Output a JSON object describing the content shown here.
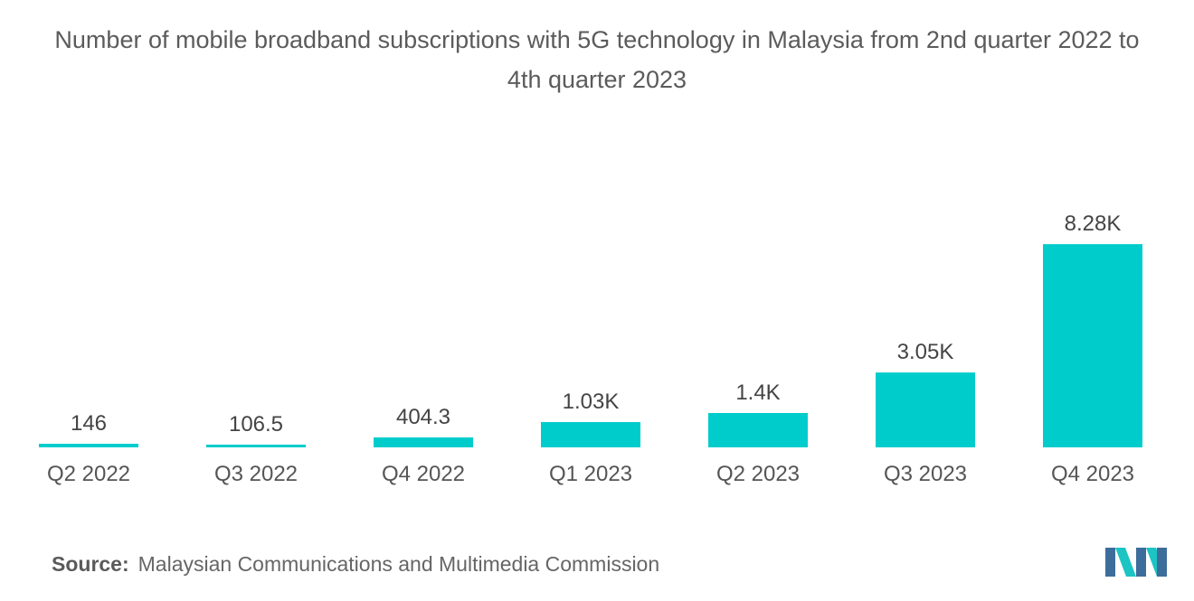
{
  "chart_data": {
    "type": "bar",
    "title": "Number of mobile broadband subscriptions with 5G technology in Malaysia from 2nd quarter 2022 to 4th quarter 2023",
    "categories": [
      "Q2 2022",
      "Q3 2022",
      "Q4 2022",
      "Q1 2023",
      "Q2 2023",
      "Q3 2023",
      "Q4 2023"
    ],
    "values": [
      146,
      106.5,
      404.3,
      1030,
      1400,
      3050,
      8280
    ],
    "data_labels": [
      "146",
      "106.5",
      "404.3",
      "1.03K",
      "1.4K",
      "3.05K",
      "8.28K"
    ],
    "xlabel": "",
    "ylabel": "",
    "ylim": [
      0,
      10200
    ],
    "grid": false,
    "legend": "none",
    "bar_color": "#00cccc"
  },
  "footer": {
    "source_label": "Source:",
    "source_text": "Malaysian Communications and Multimedia Commission"
  },
  "logo": {
    "icon": "mordor-intelligence-logo-icon",
    "colors": [
      "#3d6d9b",
      "#1cc4c4"
    ]
  },
  "colors": {
    "title": "#5b5b5b",
    "label": "#444444",
    "axis_text": "#555555"
  }
}
